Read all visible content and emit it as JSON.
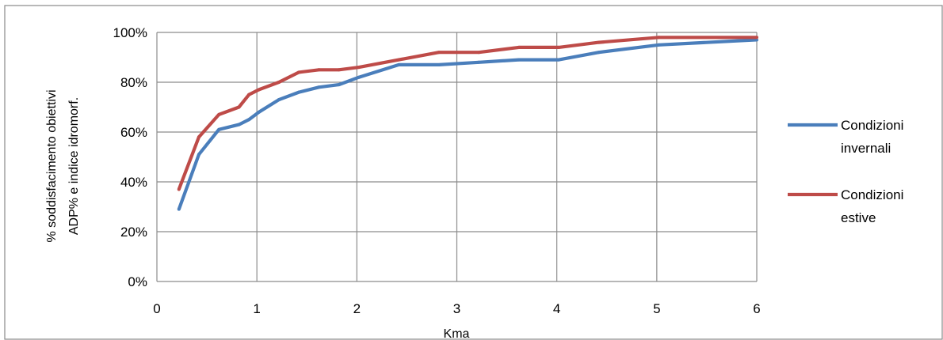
{
  "chart_data": {
    "type": "line",
    "title": "",
    "xlabel": "Kma",
    "ylabel_lines": [
      "% soddisfacimento obiettivi",
      "ADP% e indice idromorf."
    ],
    "xlim": [
      0,
      6
    ],
    "ylim": [
      0,
      100
    ],
    "x_ticks": [
      0,
      1,
      2,
      3,
      4,
      5,
      6
    ],
    "x_tick_labels": [
      "0",
      "1",
      "2",
      "3",
      "4",
      "5",
      "6"
    ],
    "y_ticks": [
      0,
      20,
      40,
      60,
      80,
      100
    ],
    "y_tick_labels": [
      "0%",
      "20%",
      "40%",
      "60%",
      "80%",
      "100%"
    ],
    "grid": true,
    "legend_position": "right",
    "series": [
      {
        "name_lines": [
          "Condizioni",
          "invernali"
        ],
        "color": "#4a7ebb",
        "x": [
          0.22,
          0.42,
          0.62,
          0.82,
          0.92,
          1.02,
          1.22,
          1.42,
          1.62,
          1.82,
          2.02,
          2.42,
          2.82,
          3.22,
          3.62,
          4.02,
          4.42,
          5.02,
          6.0
        ],
        "y": [
          29,
          51,
          61,
          63,
          65,
          68,
          73,
          76,
          78,
          79,
          82,
          87,
          87,
          88,
          89,
          89,
          92,
          95,
          97
        ]
      },
      {
        "name_lines": [
          "Condizioni",
          "estive"
        ],
        "color": "#be4b48",
        "x": [
          0.22,
          0.42,
          0.62,
          0.82,
          0.92,
          1.02,
          1.22,
          1.42,
          1.62,
          1.82,
          2.02,
          2.42,
          2.82,
          3.22,
          3.62,
          4.02,
          4.42,
          5.02,
          6.0
        ],
        "y": [
          37,
          58,
          67,
          70,
          75,
          77,
          80,
          84,
          85,
          85,
          86,
          89,
          92,
          92,
          94,
          94,
          96,
          98,
          98
        ]
      }
    ]
  }
}
